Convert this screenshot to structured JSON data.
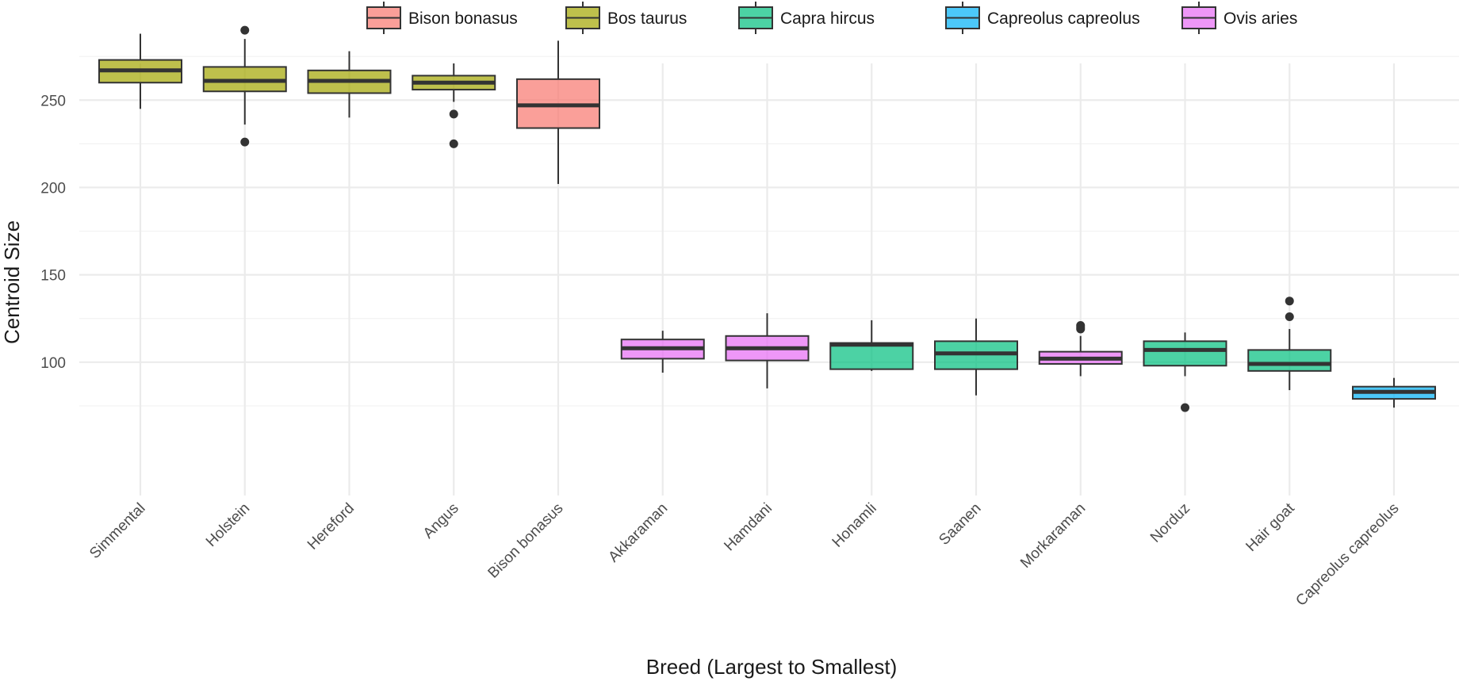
{
  "chart_data": {
    "type": "boxplot",
    "xlabel": "Breed (Largest to Smallest)",
    "ylabel": "Centroid Size",
    "ylim": [
      63,
      293
    ],
    "yticks": [
      100,
      150,
      200,
      250
    ],
    "grid": true,
    "legend_position": "top",
    "legend": [
      {
        "name": "Bison bonasus",
        "color": "#F8766D"
      },
      {
        "name": "Bos taurus",
        "color": "#A3A500"
      },
      {
        "name": "Capra hircus",
        "color": "#00BF7D"
      },
      {
        "name": "Capreolus capreolus",
        "color": "#00B0F6"
      },
      {
        "name": "Ovis aries",
        "color": "#E76BF3"
      }
    ],
    "categories": [
      "Simmental",
      "Holstein",
      "Hereford",
      "Angus",
      "Bison bonasus",
      "Akkaraman",
      "Hamdani",
      "Honamli",
      "Saanen",
      "Morkaraman",
      "Norduz",
      "Hair goat",
      "Capreolus capreolus"
    ],
    "boxes": [
      {
        "category": "Simmental",
        "species": "Bos taurus",
        "min": 245,
        "q1": 260,
        "median": 267,
        "q3": 273,
        "max": 288,
        "outliers": []
      },
      {
        "category": "Holstein",
        "species": "Bos taurus",
        "min": 236,
        "q1": 255,
        "median": 261,
        "q3": 269,
        "max": 285,
        "outliers": [
          226,
          290
        ]
      },
      {
        "category": "Hereford",
        "species": "Bos taurus",
        "min": 240,
        "q1": 254,
        "median": 261,
        "q3": 267,
        "max": 278,
        "outliers": []
      },
      {
        "category": "Angus",
        "species": "Bos taurus",
        "min": 249,
        "q1": 256,
        "median": 260,
        "q3": 264,
        "max": 271,
        "outliers": [
          242,
          225
        ]
      },
      {
        "category": "Bison bonasus",
        "species": "Bison bonasus",
        "min": 202,
        "q1": 234,
        "median": 247,
        "q3": 262,
        "max": 284,
        "outliers": []
      },
      {
        "category": "Akkaraman",
        "species": "Ovis aries",
        "min": 94,
        "q1": 102,
        "median": 108,
        "q3": 113,
        "max": 118,
        "outliers": []
      },
      {
        "category": "Hamdani",
        "species": "Ovis aries",
        "min": 85,
        "q1": 101,
        "median": 108,
        "q3": 115,
        "max": 128,
        "outliers": []
      },
      {
        "category": "Honamli",
        "species": "Capra hircus",
        "min": 95,
        "q1": 96,
        "median": 110,
        "q3": 111,
        "max": 124,
        "outliers": []
      },
      {
        "category": "Saanen",
        "species": "Capra hircus",
        "min": 81,
        "q1": 96,
        "median": 105,
        "q3": 112,
        "max": 125,
        "outliers": []
      },
      {
        "category": "Morkaraman",
        "species": "Ovis aries",
        "min": 92,
        "q1": 99,
        "median": 102,
        "q3": 106,
        "max": 115,
        "outliers": [
          119,
          121,
          120
        ]
      },
      {
        "category": "Norduz",
        "species": "Capra hircus",
        "min": 92,
        "q1": 98,
        "median": 107,
        "q3": 112,
        "max": 117,
        "outliers": [
          74
        ]
      },
      {
        "category": "Hair goat",
        "species": "Capra hircus",
        "min": 84,
        "q1": 95,
        "median": 99,
        "q3": 107,
        "max": 119,
        "outliers": [
          126,
          135
        ]
      },
      {
        "category": "Capreolus capreolus",
        "species": "Capreolus capreolus",
        "min": 74,
        "q1": 79,
        "median": 83,
        "q3": 86,
        "max": 91,
        "outliers": []
      }
    ]
  }
}
